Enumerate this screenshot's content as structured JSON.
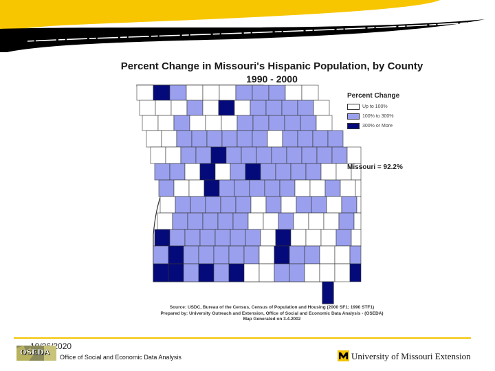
{
  "slide": {
    "date": "10/26/2020",
    "footer_office": "Office of Social and Economic Data Analysis",
    "footer_university": "University of Missouri Extension",
    "oseda_logo_text": "OSEDA"
  },
  "map": {
    "title": "Percent Change in Missouri's Hispanic Population, by County",
    "subtitle": "1990 - 2000",
    "legend": {
      "title": "Percent Change",
      "items": [
        {
          "label": "Up to 100%",
          "color": "#ffffff"
        },
        {
          "label": "100% to 300%",
          "color": "#9aa0ee"
        },
        {
          "label": "300% or More",
          "color": "#050a7a"
        }
      ]
    },
    "state_note": "Missouri = 92.2%",
    "source": {
      "line1": "Source: USDC, Bureau of the Census, Census of Population and Housing (2000 SF1; 1990 STF1)",
      "line2": "Prepared by: University Outreach and Extension, Office of Social and Economic Data Analysis - (OSEDA)",
      "line3": "Map Generated on 3.4.2002"
    },
    "colors": {
      "low": "#ffffff",
      "mid": "#9aa0ee",
      "high": "#050a7a",
      "border": "#333333"
    }
  },
  "colors": {
    "banner_yellow": "#f7c600",
    "banner_black": "#000000",
    "footer_line": "#f2c500"
  }
}
